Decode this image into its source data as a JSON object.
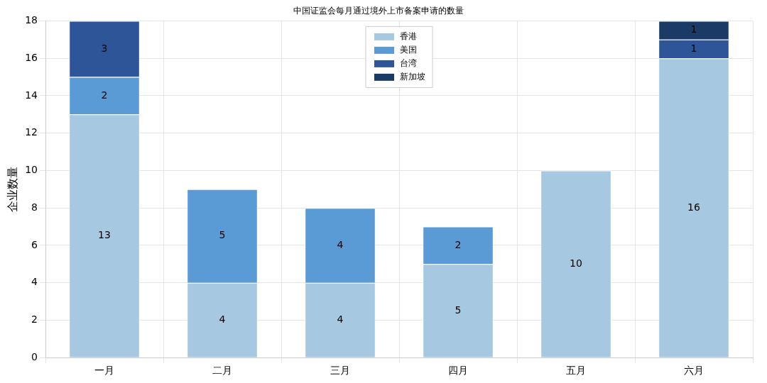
{
  "chart_data": {
    "type": "bar",
    "title": "中国证监会每月通过境外上市备案申请的数量",
    "ylabel": "企业数量",
    "categories": [
      "一月",
      "二月",
      "三月",
      "四月",
      "五月",
      "六月"
    ],
    "stacked": true,
    "series": [
      {
        "name": "香港",
        "color": "#a6c8e0",
        "values": [
          13,
          4,
          4,
          5,
          10,
          16
        ]
      },
      {
        "name": "美国",
        "color": "#5b9bd5",
        "values": [
          2,
          5,
          4,
          2,
          null,
          null
        ]
      },
      {
        "name": "台湾",
        "color": "#2e5597",
        "values": [
          3,
          null,
          null,
          null,
          null,
          1
        ]
      },
      {
        "name": "新加坡",
        "color": "#1b3a66",
        "values": [
          null,
          null,
          null,
          null,
          null,
          1
        ]
      }
    ],
    "ylim": [
      0,
      18
    ],
    "yticks": [
      0,
      2,
      4,
      6,
      8,
      10,
      12,
      14,
      16,
      18
    ],
    "grid": true,
    "legend": "top",
    "data_labels": true
  }
}
